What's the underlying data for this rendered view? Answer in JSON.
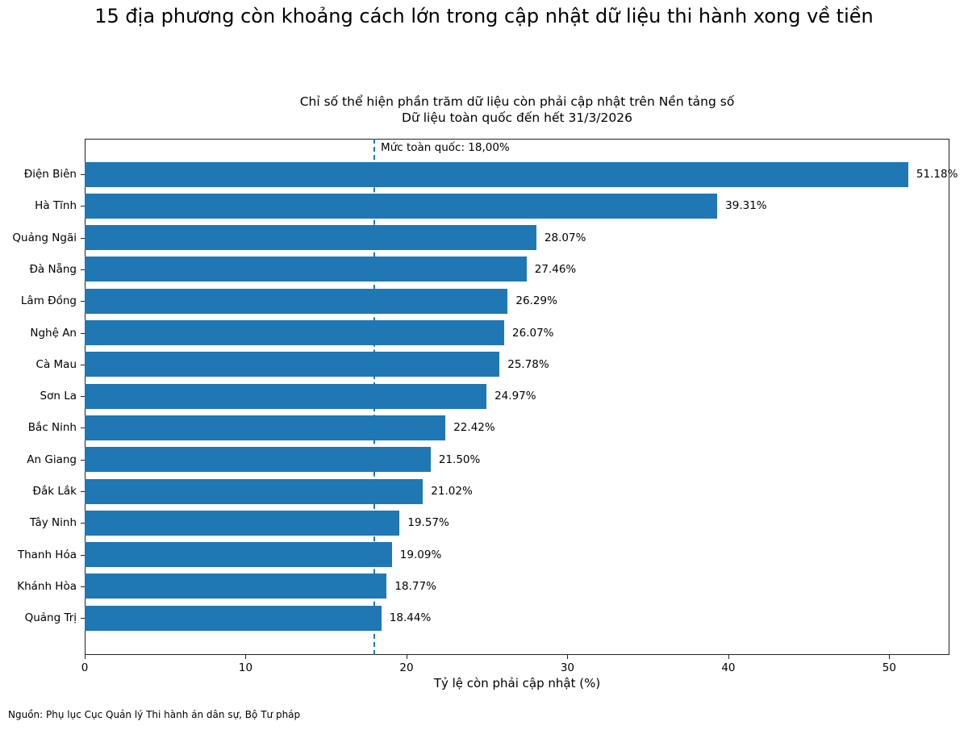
{
  "page": {
    "title": "15 địa phương còn khoảng cách lớn trong cập nhật dữ liệu thi hành xong về tiền",
    "subtitle_line1": "Chỉ số thể hiện phần trăm dữ liệu còn phải cập nhật trên Nền tảng số",
    "subtitle_line2": "Dữ liệu toàn quốc đến hết 31/3/2026",
    "source": "Nguồn: Phụ lục Cục Quản lý Thi hành án dân sự, Bộ Tư pháp"
  },
  "colors": {
    "bar": "#1f77b4",
    "reference_line": "#1f77b4",
    "axis": "#222222"
  },
  "chart_data": {
    "type": "bar",
    "orientation": "horizontal",
    "title": "Chỉ số thể hiện phần trăm dữ liệu còn phải cập nhật trên Nền tảng số\nDữ liệu toàn quốc đến hết 31/3/2026",
    "suptitle": "15 địa phương còn khoảng cách lớn trong cập nhật dữ liệu thi hành xong về tiền",
    "xlabel": "Tỷ lệ còn phải cập nhật (%)",
    "ylabel": "",
    "categories": [
      "Điện Biên",
      "Hà Tĩnh",
      "Quảng Ngãi",
      "Đà Nẵng",
      "Lâm Đồng",
      "Nghệ An",
      "Cà Mau",
      "Sơn La",
      "Bắc Ninh",
      "An Giang",
      "Đắk Lắk",
      "Tây Ninh",
      "Thanh Hóa",
      "Khánh Hòa",
      "Quảng Trị"
    ],
    "values": [
      51.18,
      39.31,
      28.07,
      27.46,
      26.29,
      26.07,
      25.78,
      24.97,
      22.42,
      21.5,
      21.02,
      19.57,
      19.09,
      18.77,
      18.44
    ],
    "value_labels": [
      "51.18%",
      "39.31%",
      "28.07%",
      "27.46%",
      "26.29%",
      "26.07%",
      "25.78%",
      "24.97%",
      "22.42%",
      "21.50%",
      "21.02%",
      "19.57%",
      "19.09%",
      "18.77%",
      "18.44%"
    ],
    "xlim": [
      0,
      53.74
    ],
    "xticks": [
      0,
      10,
      20,
      30,
      40,
      50
    ],
    "xtick_labels": [
      "0",
      "10",
      "20",
      "30",
      "40",
      "50"
    ],
    "grid": false,
    "legend": null,
    "annotations": [
      {
        "type": "vline",
        "x": 18.0,
        "style": "dashed",
        "label": "Mức toàn quốc: 18,00%"
      }
    ],
    "source": "Nguồn: Phụ lục Cục Quản lý Thi hành án dân sự, Bộ Tư pháp"
  }
}
